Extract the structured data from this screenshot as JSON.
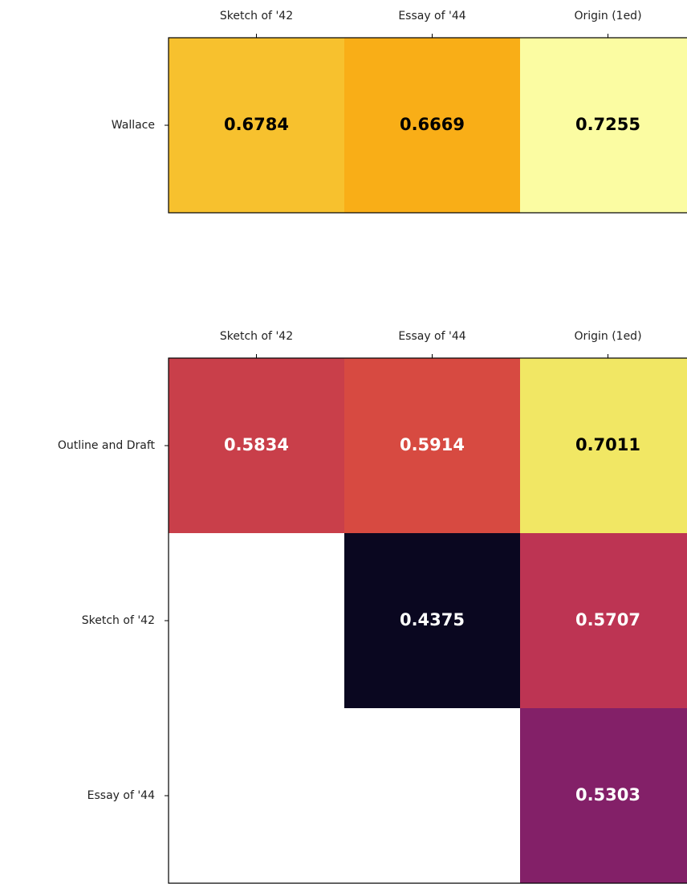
{
  "chart_data": [
    {
      "type": "heatmap",
      "x_categories": [
        "Sketch of '42",
        "Essay of '44",
        "Origin (1ed)"
      ],
      "y_categories": [
        "Wallace"
      ],
      "values": [
        [
          0.6784,
          0.6669,
          0.7255
        ]
      ],
      "colors": [
        [
          "#f7c12e",
          "#f9ae17",
          "#fbfca2"
        ]
      ]
    },
    {
      "type": "heatmap",
      "x_categories": [
        "Sketch of '42",
        "Essay of '44",
        "Origin (1ed)"
      ],
      "y_categories": [
        "Outline and Draft",
        "Sketch of '42",
        "Essay of '44"
      ],
      "values": [
        [
          0.5834,
          0.5914,
          0.7011
        ],
        [
          null,
          0.4375,
          0.5707
        ],
        [
          null,
          null,
          0.5303
        ]
      ],
      "colors": [
        [
          "#c93f4a",
          "#d74a41",
          "#f1e764"
        ],
        [
          null,
          "#0a0720",
          "#bd3453"
        ],
        [
          null,
          null,
          "#832068"
        ]
      ]
    }
  ]
}
